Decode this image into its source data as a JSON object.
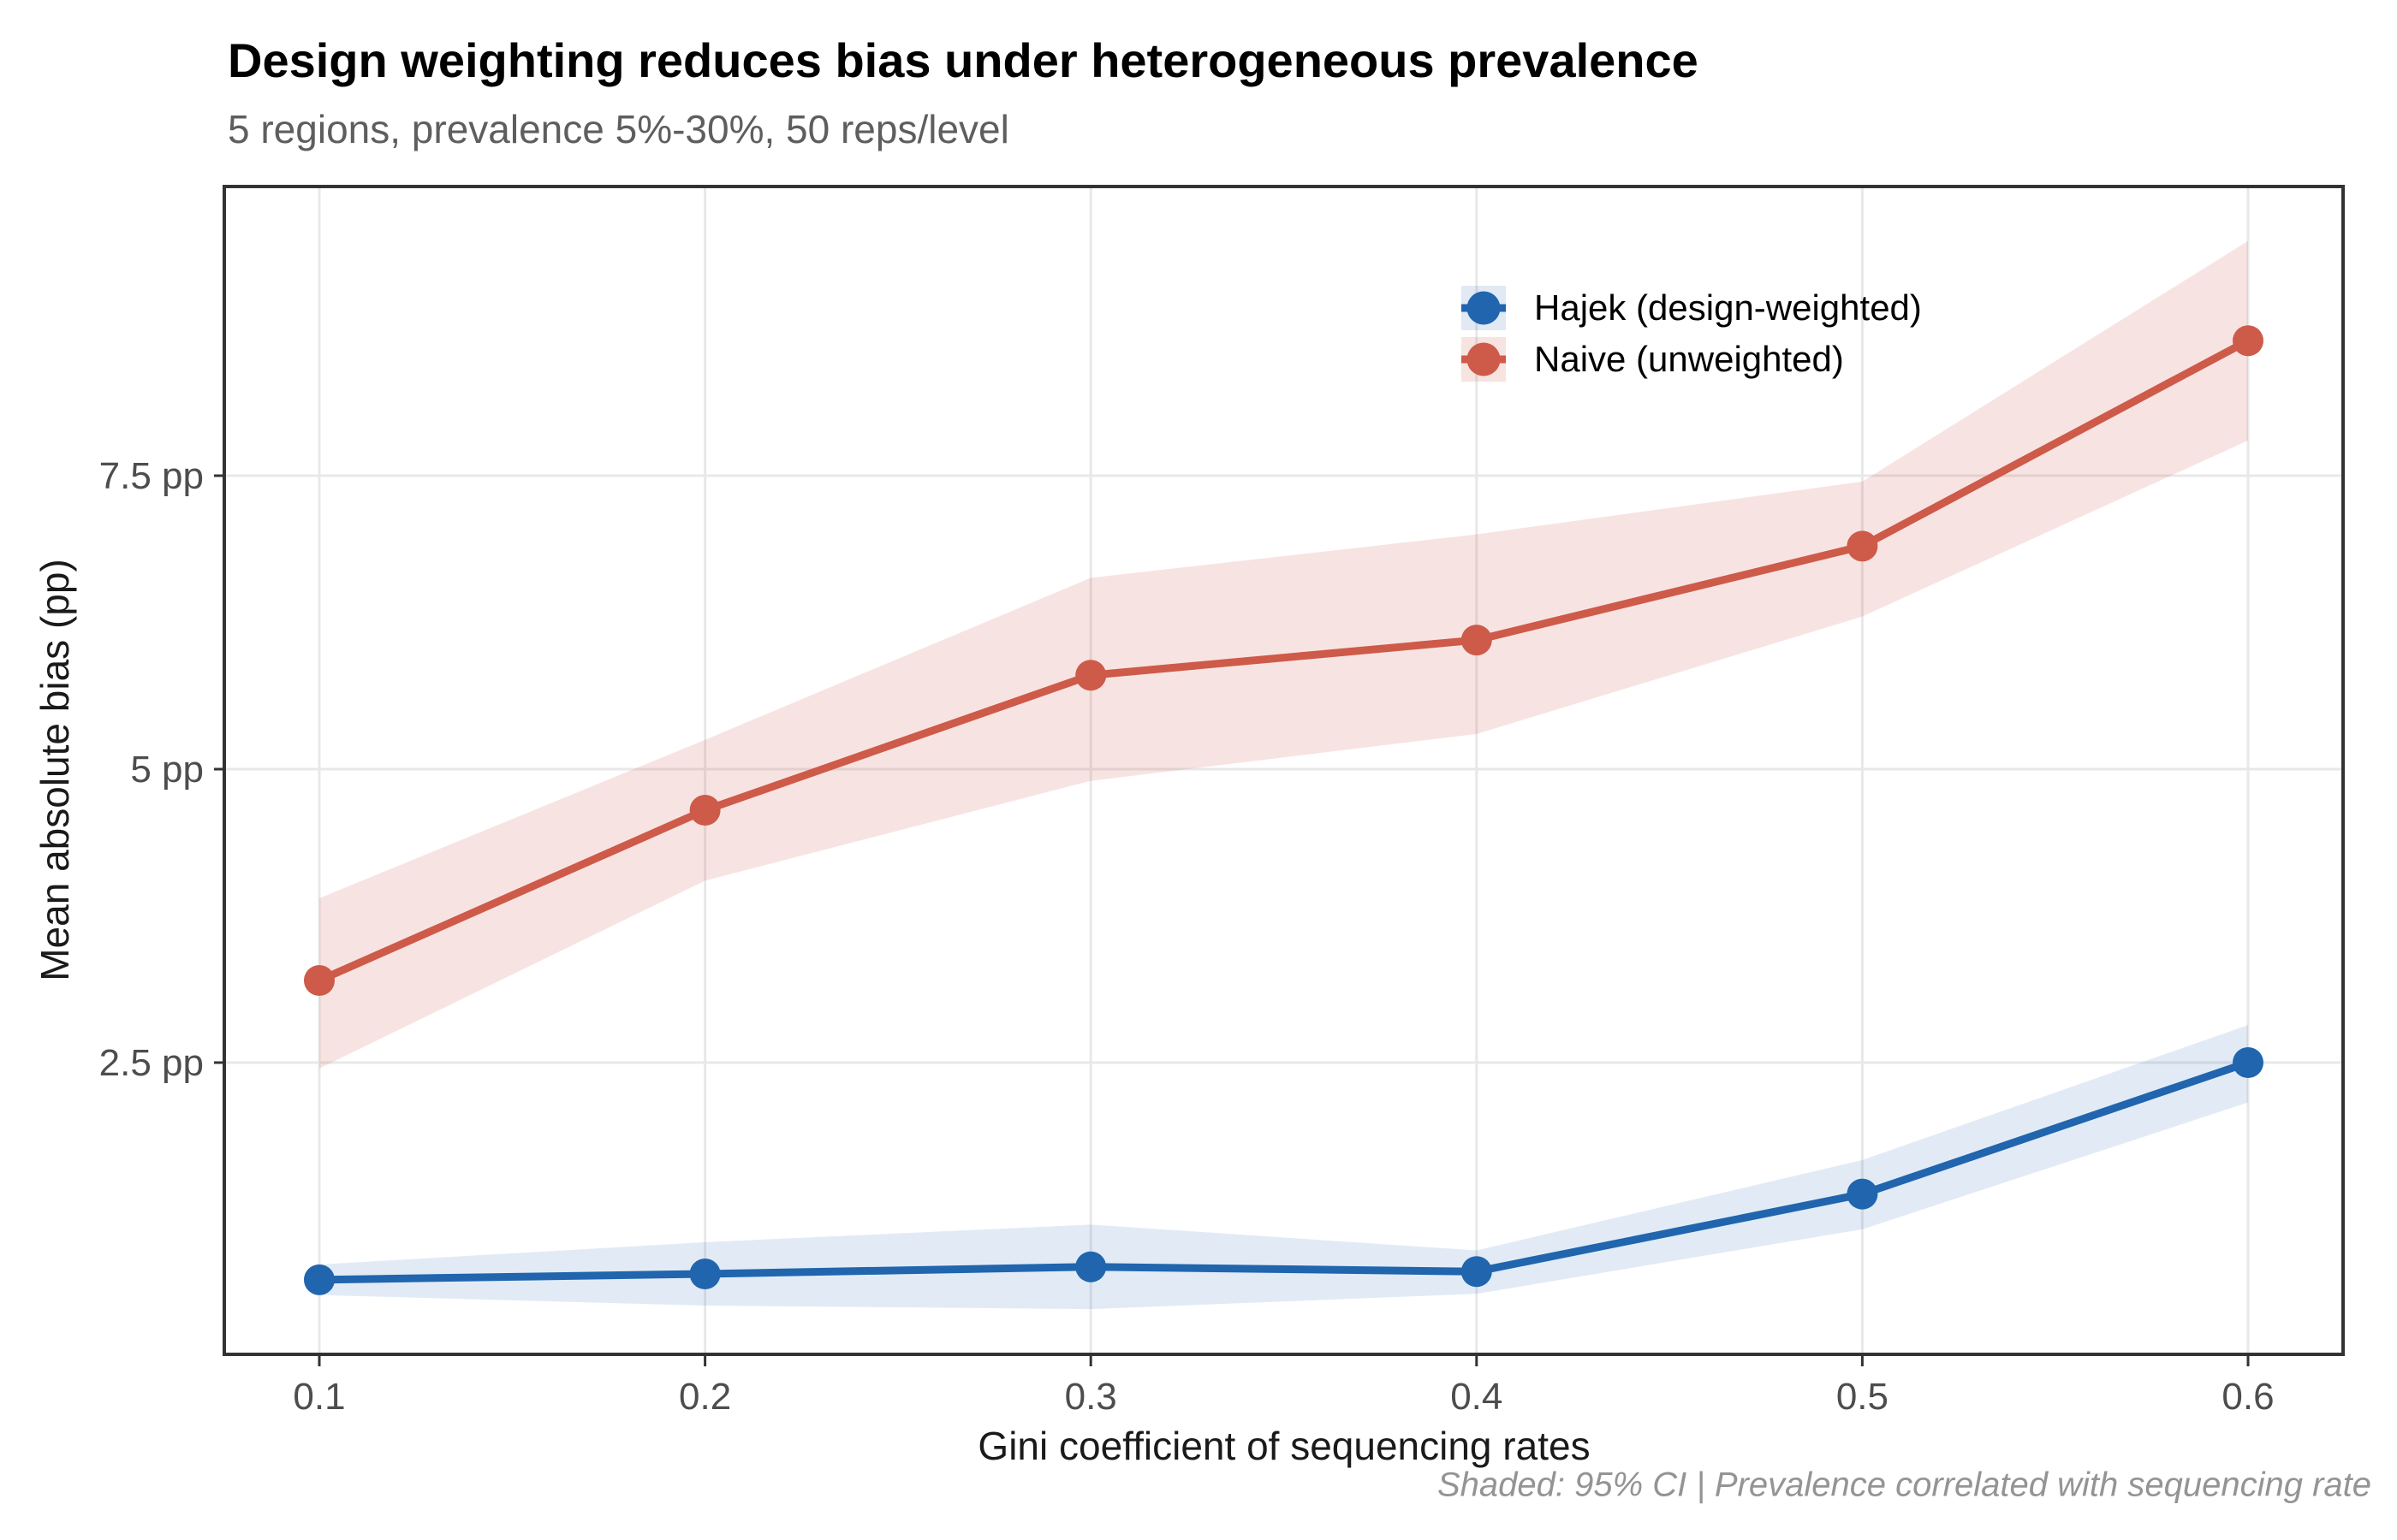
{
  "chart_data": {
    "type": "line",
    "title": "Design weighting reduces bias under heterogeneous prevalence",
    "subtitle": "5 regions, prevalence 5%-30%, 50 reps/level",
    "caption": "Shaded: 95% CI | Prevalence correlated with sequencing rate",
    "xlabel": "Gini coefficient of sequencing rates",
    "ylabel": "Mean absolute bias (pp)",
    "x": [
      0.1,
      0.2,
      0.3,
      0.4,
      0.5,
      0.6
    ],
    "x_tick_labels": [
      "0.1",
      "0.2",
      "0.3",
      "0.4",
      "0.5",
      "0.6"
    ],
    "y_ticks": [
      2.5,
      5,
      7.5
    ],
    "y_tick_labels": [
      "2.5 pp",
      "5 pp",
      "7.5 pp"
    ],
    "ylim": [
      0,
      9.95
    ],
    "grid": true,
    "legend_position": "inside-top-right",
    "shading_note": "95% CI",
    "series": [
      {
        "name": "Hajek",
        "label": "Hajek (design-weighted)",
        "color": "#2065AE",
        "ribbon_opacity": 0.13,
        "values": [
          0.65,
          0.7,
          0.76,
          0.72,
          1.38,
          2.5
        ],
        "ci_lower": [
          0.52,
          0.43,
          0.4,
          0.53,
          1.08,
          2.16
        ],
        "ci_upper": [
          0.78,
          0.97,
          1.12,
          0.9,
          1.67,
          2.82
        ]
      },
      {
        "name": "Naive",
        "label": "Naive (unweighted)",
        "color": "#CE5A49",
        "ribbon_opacity": 0.16,
        "values": [
          3.2,
          4.65,
          5.8,
          6.1,
          6.9,
          8.65
        ],
        "ci_lower": [
          2.45,
          4.05,
          4.9,
          5.3,
          6.3,
          7.8
        ],
        "ci_upper": [
          3.9,
          5.25,
          6.63,
          7.0,
          7.45,
          9.5
        ]
      }
    ]
  }
}
